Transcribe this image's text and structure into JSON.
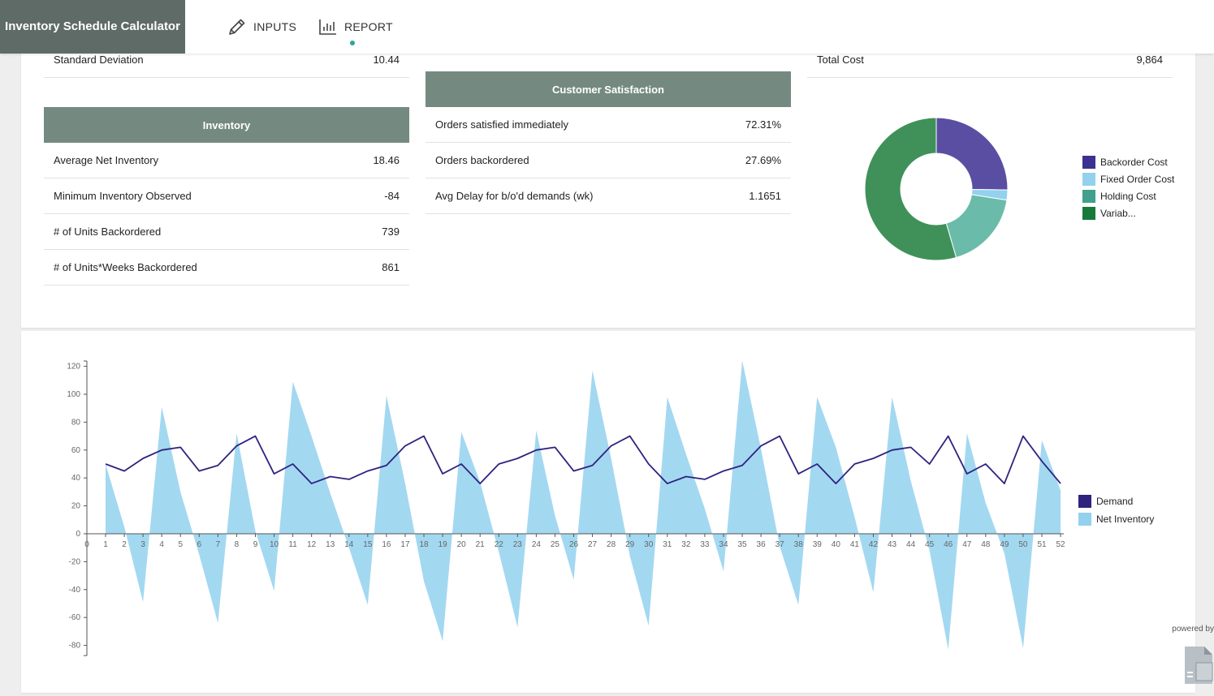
{
  "app": {
    "title": "Inventory Schedule Calculator"
  },
  "nav": {
    "inputs_label": "INPUTS",
    "report_label": "REPORT",
    "accent": "#2aa59a"
  },
  "top_partial": {
    "std_dev": {
      "label": "Standard Deviation",
      "value": "10.44"
    },
    "total_cost": {
      "label": "Total Cost",
      "value": "9,864"
    }
  },
  "inventory": {
    "header": "Inventory",
    "rows": [
      {
        "label": "Average Net Inventory",
        "value": "18.46"
      },
      {
        "label": "Minimum Inventory Observed",
        "value": "-84"
      },
      {
        "label": "# of Units Backordered",
        "value": "739"
      },
      {
        "label": "# of Units*Weeks Backordered",
        "value": "861"
      }
    ]
  },
  "customer_satisfaction": {
    "header": "Customer Satisfaction",
    "rows": [
      {
        "label": "Orders satisfied immediately",
        "value": "72.31%"
      },
      {
        "label": "Orders backordered",
        "value": "27.69%"
      },
      {
        "label": "Avg Delay for b/o'd demands (wk)",
        "value": "1.1651"
      }
    ]
  },
  "cost_chart": {
    "type": "pie",
    "slices": [
      {
        "name": "Backorder Cost",
        "value": 25.2,
        "color": "#5a4ea3"
      },
      {
        "name": "Fixed Order Cost",
        "value": 2.3,
        "color": "#93d1ee"
      },
      {
        "name": "Holding Cost",
        "value": 18.0,
        "color": "#6bbbaa"
      },
      {
        "name": "Variab...",
        "value": 54.5,
        "color": "#3f9159"
      }
    ],
    "legend_colors": [
      "#3b3191",
      "#93d1ee",
      "#40a08c",
      "#187a3a"
    ]
  },
  "chart_data": {
    "type": "line",
    "x": [
      1,
      2,
      3,
      4,
      5,
      6,
      7,
      8,
      9,
      10,
      11,
      12,
      13,
      14,
      15,
      16,
      17,
      18,
      19,
      20,
      21,
      22,
      23,
      24,
      25,
      26,
      27,
      28,
      29,
      30,
      31,
      32,
      33,
      34,
      35,
      36,
      37,
      38,
      39,
      40,
      41,
      42,
      43,
      44,
      45,
      46,
      47,
      48,
      49,
      50,
      51,
      52
    ],
    "xlim": [
      0,
      52
    ],
    "ylim": [
      -85,
      125
    ],
    "yticks": [
      120,
      100,
      80,
      60,
      40,
      20,
      0,
      -20,
      -40,
      -60,
      -80
    ],
    "legend_position": "right",
    "series": [
      {
        "name": "Demand",
        "kind": "line",
        "color": "#2e237f",
        "values": [
          50,
          45,
          54,
          60,
          62,
          45,
          49,
          63,
          70,
          43,
          50,
          36,
          41,
          39,
          45,
          49,
          63,
          70,
          43,
          50,
          36,
          50,
          54,
          60,
          62,
          45,
          49,
          63,
          70,
          50,
          36,
          41,
          39,
          45,
          49,
          63,
          70,
          43,
          50,
          36,
          50,
          54,
          60,
          62,
          50,
          70,
          43,
          50,
          36,
          70,
          52,
          36
        ]
      },
      {
        "name": "Net Inventory",
        "kind": "area",
        "color": "#93d1ee",
        "values": [
          50,
          5,
          -49,
          91,
          30,
          -15,
          -64,
          72,
          2,
          -41,
          109,
          70,
          29,
          -10,
          -51,
          99,
          36,
          -34,
          -77,
          73,
          37,
          -13,
          -67,
          74,
          13,
          -33,
          117,
          54,
          -16,
          -66,
          98,
          57,
          18,
          -27,
          124,
          61,
          -9,
          -51,
          98,
          62,
          12,
          -42,
          98,
          38,
          -12,
          -83,
          72,
          22,
          -14,
          -82,
          67,
          31
        ]
      }
    ]
  },
  "footer": {
    "powered_by": "powered by"
  }
}
